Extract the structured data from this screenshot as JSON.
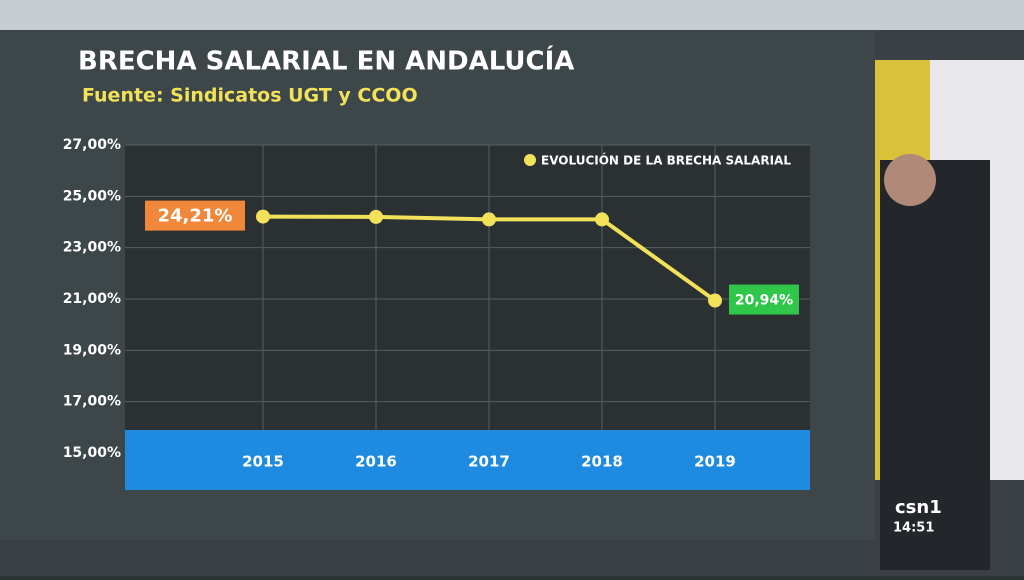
{
  "chart_data": {
    "type": "line",
    "title": "BRECHA SALARIAL EN ANDALUCÍA",
    "subtitle": "Fuente: Sindicatos UGT y CCOO",
    "categories": [
      "2015",
      "2016",
      "2017",
      "2018",
      "2019"
    ],
    "series": [
      {
        "name": "EVOLUCIÓN DE LA BRECHA SALARIAL",
        "color": "#f2e25a",
        "values": [
          24.21,
          24.2,
          24.1,
          24.1,
          20.94
        ],
        "value_labels": [
          "24,21%",
          null,
          null,
          null,
          "20,94%"
        ],
        "label_colors": [
          "#f0873a",
          null,
          null,
          null,
          "#2fc64a"
        ]
      }
    ],
    "ylim": [
      15,
      27
    ],
    "yticks": [
      {
        "value": 15,
        "label": "15,00%"
      },
      {
        "value": 17,
        "label": "17,00%"
      },
      {
        "value": 19,
        "label": "19,00%"
      },
      {
        "value": 21,
        "label": "21,00%"
      },
      {
        "value": 23,
        "label": "23,00%"
      },
      {
        "value": 25,
        "label": "25,00%"
      },
      {
        "value": 27,
        "label": "27,00%"
      }
    ],
    "grid": true,
    "legend": "top-right"
  },
  "broadcast": {
    "channel": "csn1",
    "time": "14:51"
  }
}
